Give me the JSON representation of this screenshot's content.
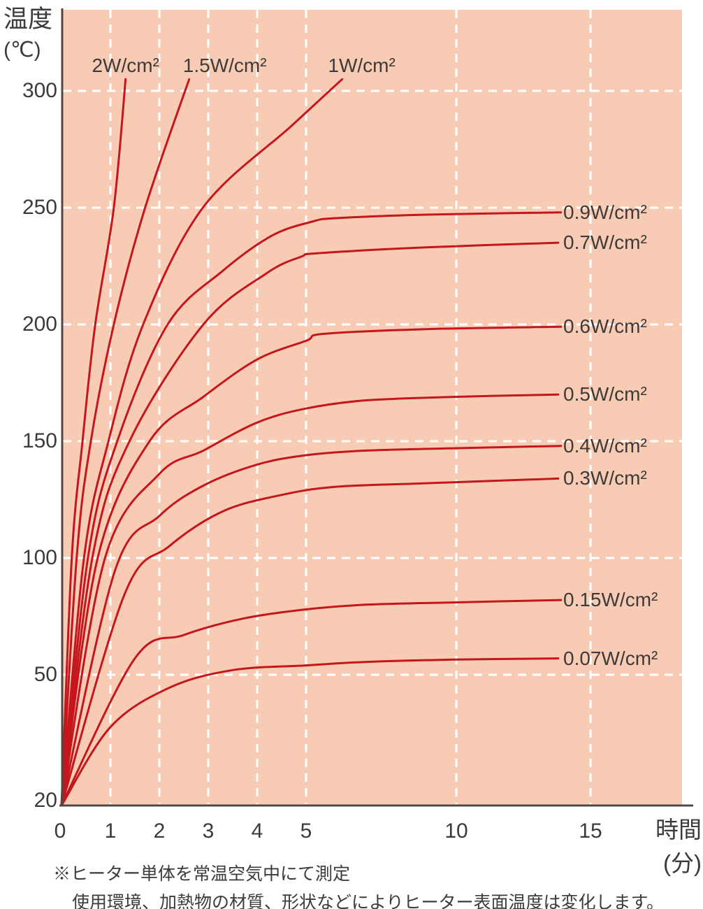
{
  "chart_data": {
    "type": "line",
    "title": "",
    "y_axis": {
      "title_line1": "温度",
      "title_line2": "(℃)",
      "ticks": [
        300,
        250,
        200,
        150,
        100,
        50,
        20
      ],
      "range_shown": [
        20,
        305
      ]
    },
    "x_axis": {
      "title_line1": "時間",
      "title_line2": "(分)",
      "ticks": [
        0,
        1,
        2,
        3,
        4,
        5,
        10,
        15
      ],
      "range_shown": [
        0,
        15
      ]
    },
    "grid": "white dashed, on",
    "legend_position": "labels at curve ends",
    "colors": {
      "plot_bg": "#f8cbb4",
      "curve": "#c5161d",
      "grid": "#ffffff",
      "axis": "#504844",
      "text": "#3e3a39"
    },
    "series": [
      {
        "label": "2W/cm²",
        "label_side": "top",
        "label_dx": 0,
        "points": [
          [
            0,
            20
          ],
          [
            0.21,
            100
          ],
          [
            0.43,
            150
          ],
          [
            0.69,
            200
          ],
          [
            1.07,
            250
          ],
          [
            1.31,
            305
          ]
        ]
      },
      {
        "label": "1.5W/cm²",
        "label_side": "top",
        "label_dx": 51,
        "points": [
          [
            0,
            20
          ],
          [
            0.31,
            100
          ],
          [
            0.6,
            150
          ],
          [
            1.07,
            200
          ],
          [
            1.71,
            250
          ],
          [
            2.61,
            305
          ]
        ]
      },
      {
        "label": "1W/cm²",
        "label_side": "top",
        "label_dx": 28,
        "points": [
          [
            0,
            20
          ],
          [
            0.46,
            100
          ],
          [
            0.96,
            150
          ],
          [
            1.67,
            200
          ],
          [
            2.89,
            250
          ],
          [
            4.7,
            285
          ],
          [
            6.2,
            305
          ]
        ]
      },
      {
        "label": "0.9W/cm²",
        "label_side": "right",
        "points": [
          [
            0,
            20
          ],
          [
            0.54,
            100
          ],
          [
            1.14,
            150
          ],
          [
            2.17,
            200
          ],
          [
            3.3,
            223
          ],
          [
            4.3,
            238
          ],
          [
            5.2,
            244
          ],
          [
            6,
            245.5
          ],
          [
            9,
            247
          ],
          [
            13.9,
            248
          ]
        ]
      },
      {
        "label": "0.7W/cm²",
        "label_side": "right",
        "points": [
          [
            0,
            20
          ],
          [
            0.63,
            100
          ],
          [
            1.39,
            150
          ],
          [
            2.9,
            200
          ],
          [
            4.2,
            222
          ],
          [
            4.9,
            229
          ],
          [
            5.4,
            230.5
          ],
          [
            9,
            233
          ],
          [
            13.8,
            235
          ]
        ]
      },
      {
        "label": "0.6W/cm²",
        "label_side": "right",
        "points": [
          [
            0,
            20
          ],
          [
            0.74,
            100
          ],
          [
            1.8,
            150
          ],
          [
            2.9,
            169
          ],
          [
            4,
            185
          ],
          [
            5,
            193
          ],
          [
            5.6,
            196
          ],
          [
            9,
            198
          ],
          [
            13.9,
            199
          ]
        ]
      },
      {
        "label": "0.5W/cm²",
        "label_side": "right",
        "points": [
          [
            0,
            20
          ],
          [
            0.89,
            100
          ],
          [
            2,
            136
          ],
          [
            2.9,
            146
          ],
          [
            4,
            158
          ],
          [
            5,
            164
          ],
          [
            7,
            167.5
          ],
          [
            10,
            169
          ],
          [
            13.8,
            170
          ]
        ]
      },
      {
        "label": "0.4W/cm²",
        "label_side": "right",
        "points": [
          [
            0,
            20
          ],
          [
            1.1,
            95
          ],
          [
            2,
            118
          ],
          [
            2.9,
            131
          ],
          [
            4,
            140
          ],
          [
            5,
            144
          ],
          [
            7,
            146
          ],
          [
            10,
            147
          ],
          [
            13.9,
            148
          ]
        ]
      },
      {
        "label": "0.3W/cm²",
        "label_side": "right",
        "points": [
          [
            0,
            20
          ],
          [
            1.3,
            85
          ],
          [
            2.2,
            105
          ],
          [
            3.3,
            120
          ],
          [
            4.5,
            127
          ],
          [
            6,
            130.5
          ],
          [
            9,
            132
          ],
          [
            13.8,
            134
          ]
        ]
      },
      {
        "label": "0.15W/cm²",
        "label_side": "right",
        "points": [
          [
            0,
            20
          ],
          [
            1.5,
            57
          ],
          [
            2.5,
            67
          ],
          [
            3.7,
            74
          ],
          [
            5,
            78
          ],
          [
            7,
            80
          ],
          [
            10,
            81
          ],
          [
            13.9,
            82
          ]
        ]
      },
      {
        "label": "0.07W/cm²",
        "label_side": "right",
        "points": [
          [
            0,
            20
          ],
          [
            1,
            38
          ],
          [
            2.2,
            47
          ],
          [
            3.5,
            52
          ],
          [
            5,
            54
          ],
          [
            7,
            55.5
          ],
          [
            10,
            56.5
          ],
          [
            13.8,
            57
          ]
        ]
      }
    ],
    "footnote": {
      "line1": "※ヒーター単体を常温空気中にて測定",
      "line2": "使用環境、加熱物の材質、形状などによりヒーター表面温度は変化します。"
    }
  }
}
